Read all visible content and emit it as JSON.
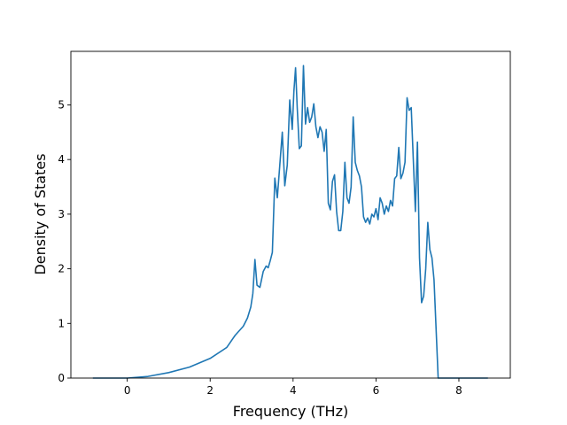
{
  "chart_data": {
    "type": "line",
    "xlabel": "Frequency (THz)",
    "ylabel": "Density of States",
    "xlim": [
      -1.36,
      9.24
    ],
    "ylim": [
      0,
      5.98
    ],
    "x_ticks": [
      0,
      2,
      4,
      6,
      8
    ],
    "y_ticks": [
      0,
      1,
      2,
      3,
      4,
      5
    ],
    "x_tick_labels": [
      "0",
      "2",
      "4",
      "6",
      "8"
    ],
    "y_tick_labels": [
      "0",
      "1",
      "2",
      "3",
      "4",
      "5"
    ],
    "grid": false,
    "line_color": "#1f77b4",
    "series": [
      {
        "x": [
          -0.83,
          0.0,
          0.5,
          1.0,
          1.5,
          2.0,
          2.4,
          2.6,
          2.8,
          2.9,
          2.98,
          3.03,
          3.08,
          3.13,
          3.2,
          3.28,
          3.35,
          3.4,
          3.45,
          3.5,
          3.56,
          3.62,
          3.68,
          3.74,
          3.8,
          3.86,
          3.92,
          3.98,
          4.02,
          4.06,
          4.1,
          4.15,
          4.2,
          4.25,
          4.3,
          4.35,
          4.4,
          4.45,
          4.5,
          4.55,
          4.6,
          4.65,
          4.7,
          4.75,
          4.8,
          4.85,
          4.9,
          4.95,
          5.0,
          5.05,
          5.1,
          5.15,
          5.2,
          5.25,
          5.3,
          5.35,
          5.4,
          5.45,
          5.5,
          5.55,
          5.6,
          5.65,
          5.7,
          5.75,
          5.8,
          5.85,
          5.9,
          5.95,
          6.0,
          6.05,
          6.1,
          6.15,
          6.2,
          6.25,
          6.3,
          6.35,
          6.4,
          6.45,
          6.5,
          6.55,
          6.6,
          6.65,
          6.7,
          6.75,
          6.8,
          6.85,
          6.9,
          6.95,
          7.0,
          7.05,
          7.1,
          7.15,
          7.2,
          7.25,
          7.3,
          7.35,
          7.4,
          7.45,
          7.5,
          7.55,
          7.6,
          7.65,
          7.7,
          7.75,
          7.8,
          7.85,
          7.9,
          7.95,
          8.0,
          8.7
        ],
        "y": [
          0,
          0,
          0.03,
          0.1,
          0.2,
          0.36,
          0.56,
          0.78,
          0.95,
          1.1,
          1.3,
          1.55,
          2.17,
          1.7,
          1.66,
          1.95,
          2.05,
          2.02,
          2.15,
          2.3,
          3.66,
          3.3,
          3.9,
          4.5,
          3.52,
          3.9,
          5.09,
          4.55,
          5.25,
          5.68,
          4.95,
          4.2,
          4.25,
          5.72,
          4.65,
          4.95,
          4.68,
          4.78,
          5.02,
          4.6,
          4.4,
          4.6,
          4.5,
          4.15,
          4.55,
          3.2,
          3.08,
          3.6,
          3.72,
          3.05,
          2.7,
          2.7,
          3.05,
          3.95,
          3.3,
          3.2,
          3.5,
          4.78,
          3.95,
          3.8,
          3.7,
          3.5,
          2.95,
          2.85,
          2.93,
          2.82,
          3.0,
          2.95,
          3.1,
          2.9,
          3.3,
          3.2,
          3.0,
          3.15,
          3.05,
          3.25,
          3.15,
          3.65,
          3.7,
          4.22,
          3.65,
          3.75,
          3.95,
          5.13,
          4.9,
          4.95,
          4.0,
          3.05,
          4.32,
          2.2,
          1.38,
          1.5,
          2.0,
          2.85,
          2.35,
          2.2,
          1.8,
          0.9,
          0,
          0,
          0,
          0,
          0,
          0,
          0,
          0,
          0,
          0,
          0,
          0
        ]
      }
    ]
  }
}
